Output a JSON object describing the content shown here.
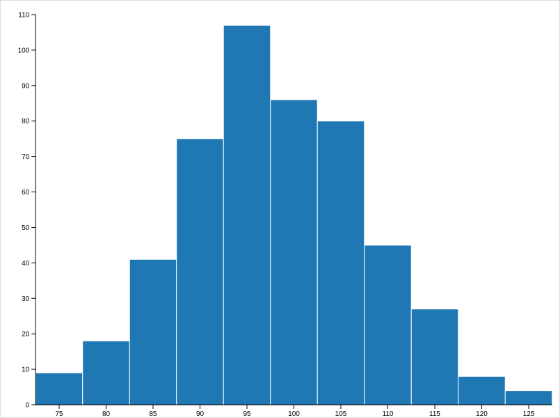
{
  "chart_data": {
    "type": "histogram",
    "bins": [
      72.5,
      77.5,
      82.5,
      87.5,
      92.5,
      97.5,
      102.5,
      107.5,
      112.5,
      117.5,
      122.5,
      127.5
    ],
    "values": [
      9,
      18,
      41,
      75,
      107,
      86,
      80,
      45,
      27,
      8,
      4
    ],
    "color": "#1f77b4",
    "xlim": [
      72.5,
      127.5
    ],
    "xticks": [
      75,
      80,
      85,
      90,
      95,
      100,
      105,
      110,
      115,
      120,
      125
    ],
    "ylim": [
      0,
      110
    ],
    "yticks": [
      0,
      10,
      20,
      30,
      40,
      50,
      60,
      70,
      80,
      90,
      100,
      110
    ]
  }
}
